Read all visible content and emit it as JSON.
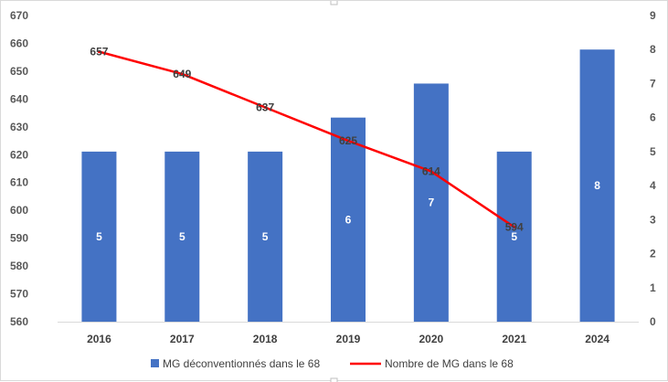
{
  "chart_data": {
    "type": "bar",
    "categories": [
      "2016",
      "2017",
      "2018",
      "2019",
      "2020",
      "2021",
      "2024"
    ],
    "series": [
      {
        "name": "MG déconventionnés dans le 68",
        "type": "bar",
        "axis": "right",
        "color": "#4472c4",
        "values": [
          5,
          5,
          5,
          6,
          7,
          5,
          8
        ]
      },
      {
        "name": "Nombre de MG dans le 68",
        "type": "line",
        "axis": "left",
        "color": "#ff0000",
        "values": [
          657,
          649,
          637,
          625,
          614,
          594,
          null
        ]
      }
    ],
    "y_left": {
      "min": 560,
      "max": 670,
      "step": 10
    },
    "y_right": {
      "min": 0,
      "max": 9,
      "step": 1
    },
    "grid": false,
    "legend_position": "bottom"
  }
}
